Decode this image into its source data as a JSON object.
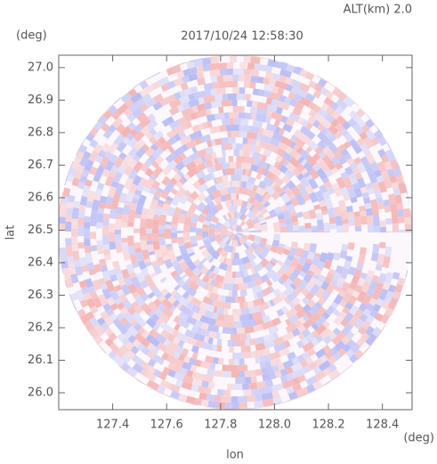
{
  "chart_data": {
    "type": "ppi",
    "title": "2017/10/24 12:58:30",
    "subtitle": "ALT(km) 2.0",
    "x_label": "lon",
    "x_unit": "(deg)",
    "y_label": "lat",
    "y_unit": "(deg)",
    "xlim": [
      127.2,
      128.51
    ],
    "ylim": [
      25.948,
      27.038
    ],
    "xticks": [
      127.4,
      127.6,
      127.8,
      {
        "value": 128.0,
        "label": "128.0"
      },
      128.2,
      128.4
    ],
    "yticks": [
      {
        "value": 26.0,
        "label": "26.0"
      },
      26.1,
      26.2,
      26.3,
      26.4,
      26.5,
      26.6,
      26.7,
      26.8,
      26.9,
      {
        "value": 27.0,
        "label": "27.0"
      }
    ],
    "colors": [
      "#f4b4b4",
      "#b8bcf4"
    ]
  }
}
